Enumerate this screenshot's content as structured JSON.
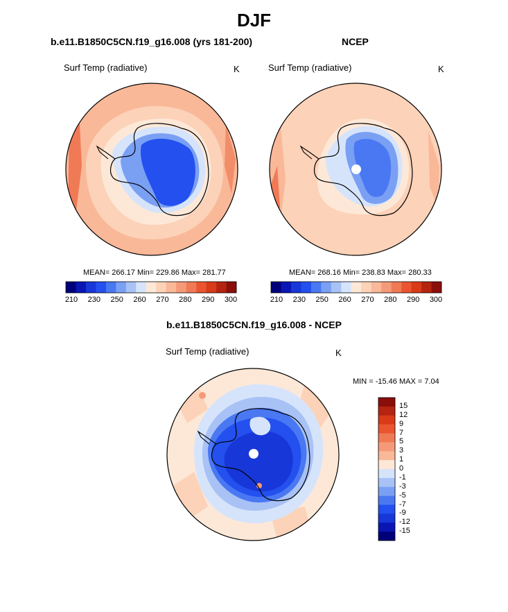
{
  "chart_data": {
    "type": "polar-contour-map",
    "title": "DJF",
    "panels": [
      {
        "id": "model",
        "title": "b.e11.B1850C5CN.f19_g16.008 (yrs 181-200)",
        "variable": "Surf Temp (radiative)",
        "units": "K",
        "stats": "MEAN= 266.17  Min= 229.86  Max= 281.77",
        "colorbar": {
          "orientation": "horizontal",
          "levels": [
            210,
            220,
            230,
            240,
            250,
            255,
            260,
            265,
            270,
            272,
            275,
            278,
            280,
            285,
            290,
            295,
            300
          ],
          "tick_labels": [
            "210",
            "230",
            "250",
            "260",
            "270",
            "280",
            "290",
            "300"
          ],
          "colors": [
            "#00007a",
            "#0a16b4",
            "#1837d8",
            "#2350ee",
            "#4a78f2",
            "#7aa0f4",
            "#a8c2f6",
            "#d6e4fb",
            "#fde8d8",
            "#fcd2b8",
            "#f9b898",
            "#f59a78",
            "#f07a56",
            "#ea5530",
            "#d93a18",
            "#b52410",
            "#8a0e0a"
          ]
        }
      },
      {
        "id": "obs",
        "title": "NCEP",
        "variable": "Surf Temp (radiative)",
        "units": "K",
        "stats": "MEAN= 268.16  Min= 238.83  Max= 280.33",
        "colorbar": {
          "orientation": "horizontal",
          "levels": [
            210,
            220,
            230,
            240,
            250,
            255,
            260,
            265,
            270,
            272,
            275,
            278,
            280,
            285,
            290,
            295,
            300
          ],
          "tick_labels": [
            "210",
            "230",
            "250",
            "260",
            "270",
            "280",
            "290",
            "300"
          ],
          "colors": [
            "#00007a",
            "#0a16b4",
            "#1837d8",
            "#2350ee",
            "#4a78f2",
            "#7aa0f4",
            "#a8c2f6",
            "#d6e4fb",
            "#fde8d8",
            "#fcd2b8",
            "#f9b898",
            "#f59a78",
            "#f07a56",
            "#ea5530",
            "#d93a18",
            "#b52410",
            "#8a0e0a"
          ]
        }
      },
      {
        "id": "diff",
        "title": "b.e11.B1850C5CN.f19_g16.008 - NCEP",
        "variable": "Surf Temp (radiative)",
        "units": "K",
        "stats": "MIN = -15.46 MAX =   7.04",
        "colorbar": {
          "orientation": "vertical",
          "tick_labels": [
            "15",
            "12",
            "9",
            "7",
            "5",
            "3",
            "1",
            "0",
            "-1",
            "-3",
            "-5",
            "-7",
            "-9",
            "-12",
            "-15"
          ],
          "colors": [
            "#8a0e0a",
            "#b52410",
            "#d93a18",
            "#ea5530",
            "#f07a56",
            "#f59a78",
            "#f9b898",
            "#fde8d8",
            "#d6e4fb",
            "#a8c2f6",
            "#7aa0f4",
            "#4a78f2",
            "#2350ee",
            "#1837d8",
            "#0a16b4",
            "#00007a"
          ]
        }
      }
    ]
  }
}
